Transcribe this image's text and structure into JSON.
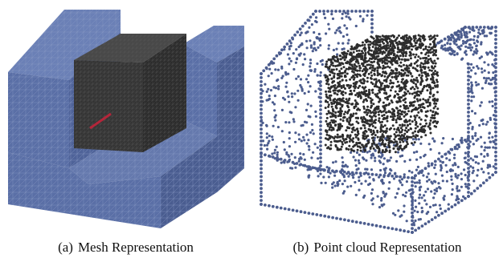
{
  "figure": {
    "panel_a": {
      "tag": "(a)",
      "caption": "Mesh Representation"
    },
    "panel_b": {
      "tag": "(b)",
      "caption": "Point cloud Representation"
    }
  },
  "colors": {
    "mesh_blue": "#5a6fa6",
    "mesh_blue_dark": "#4a5d90",
    "mesh_blue_light": "#6b80b6",
    "cube_dark": "#3a3a3a",
    "cube_darker": "#2a2a2a",
    "point_blue": "#4c5d8e",
    "point_dark": "#2d2d2d",
    "accent_red": "#b3263a"
  }
}
